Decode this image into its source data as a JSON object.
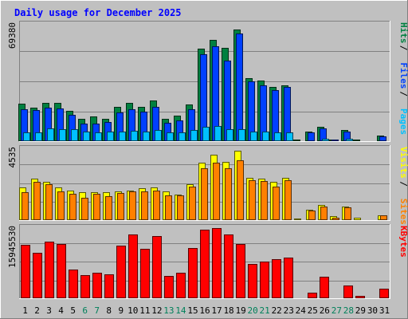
{
  "chart_data": [
    {
      "type": "bar",
      "title": "Daily usage for December 2025",
      "ymax_label": "69380",
      "ylim": [
        0,
        69380
      ],
      "grid": true,
      "categories": [
        "1",
        "2",
        "3",
        "4",
        "5",
        "6",
        "7",
        "8",
        "9",
        "10",
        "11",
        "12",
        "13",
        "14",
        "15",
        "16",
        "17",
        "18",
        "19",
        "20",
        "21",
        "22",
        "23",
        "24",
        "25",
        "26",
        "27",
        "28",
        "29",
        "30",
        "31"
      ],
      "weekend_days": [
        "6",
        "7",
        "13",
        "14",
        "20",
        "21",
        "27",
        "28"
      ],
      "series": [
        {
          "name": "Hits",
          "color": "#008040",
          "values": [
            22500,
            20000,
            23000,
            23000,
            18000,
            13500,
            14500,
            13500,
            20500,
            23000,
            20500,
            24000,
            13500,
            15000,
            22000,
            55000,
            60500,
            55500,
            66500,
            37500,
            36000,
            32500,
            33500,
            1000,
            5500,
            8500,
            1000,
            6500,
            1000,
            0,
            3500
          ]
        },
        {
          "name": "Files",
          "color": "#0040ff",
          "values": [
            19000,
            18500,
            20000,
            19500,
            15500,
            10500,
            10500,
            11500,
            17000,
            19000,
            17500,
            20500,
            11000,
            12500,
            19000,
            52000,
            56500,
            48000,
            64000,
            35500,
            33500,
            30500,
            32500,
            600,
            5000,
            7500,
            800,
            5500,
            600,
            0,
            3000
          ]
        },
        {
          "name": "Pages",
          "color": "#00c0ff",
          "values": [
            5000,
            5000,
            7500,
            7000,
            7000,
            5500,
            5000,
            5500,
            5500,
            6000,
            5500,
            6500,
            5000,
            5000,
            6500,
            8500,
            9000,
            7000,
            7000,
            5500,
            5500,
            5000,
            5000,
            0,
            0,
            1500,
            0,
            1500,
            0,
            0,
            0
          ]
        }
      ],
      "legend": [
        "Pages",
        "Files",
        "Hits"
      ],
      "legend_placement": "right"
    },
    {
      "type": "bar",
      "ymax_label": "4535",
      "ylim": [
        0,
        4535
      ],
      "grid": true,
      "series": [
        {
          "name": "Visits",
          "color": "#ffff00",
          "values": [
            2100,
            2650,
            2450,
            2100,
            1900,
            1800,
            1800,
            1800,
            1850,
            1900,
            2050,
            2100,
            1850,
            1650,
            2300,
            3650,
            4200,
            3700,
            4450,
            2700,
            2650,
            2450,
            2700,
            100,
            650,
            950,
            250,
            850,
            130,
            0,
            300
          ]
        },
        {
          "name": "Sites",
          "color": "#ff8000",
          "values": [
            1800,
            2450,
            2300,
            1850,
            1700,
            1450,
            1700,
            1550,
            1750,
            1850,
            1850,
            1900,
            1600,
            1600,
            2150,
            3300,
            3650,
            3300,
            3800,
            2550,
            2500,
            2150,
            2550,
            50,
            600,
            850,
            150,
            800,
            70,
            0,
            300
          ]
        }
      ],
      "legend": [
        "Sites",
        "Visits"
      ],
      "legend_placement": "right"
    },
    {
      "type": "bar",
      "ymax_label": "15945530",
      "ylim": [
        0,
        15945530
      ],
      "grid": true,
      "series": [
        {
          "name": "KBytes",
          "color": "#ff0000",
          "values": [
            12200000,
            10400000,
            12900000,
            12300000,
            6500000,
            5300000,
            5800000,
            5500000,
            11900000,
            14500000,
            11300000,
            14200000,
            5100000,
            5800000,
            11500000,
            15600000,
            16000000,
            14500000,
            12400000,
            7800000,
            8400000,
            8900000,
            9300000,
            200000,
            1200000,
            4900000,
            200000,
            2900000,
            500000,
            0,
            2200000
          ]
        }
      ],
      "legend": [
        "KBytes"
      ],
      "legend_placement": "right"
    }
  ]
}
